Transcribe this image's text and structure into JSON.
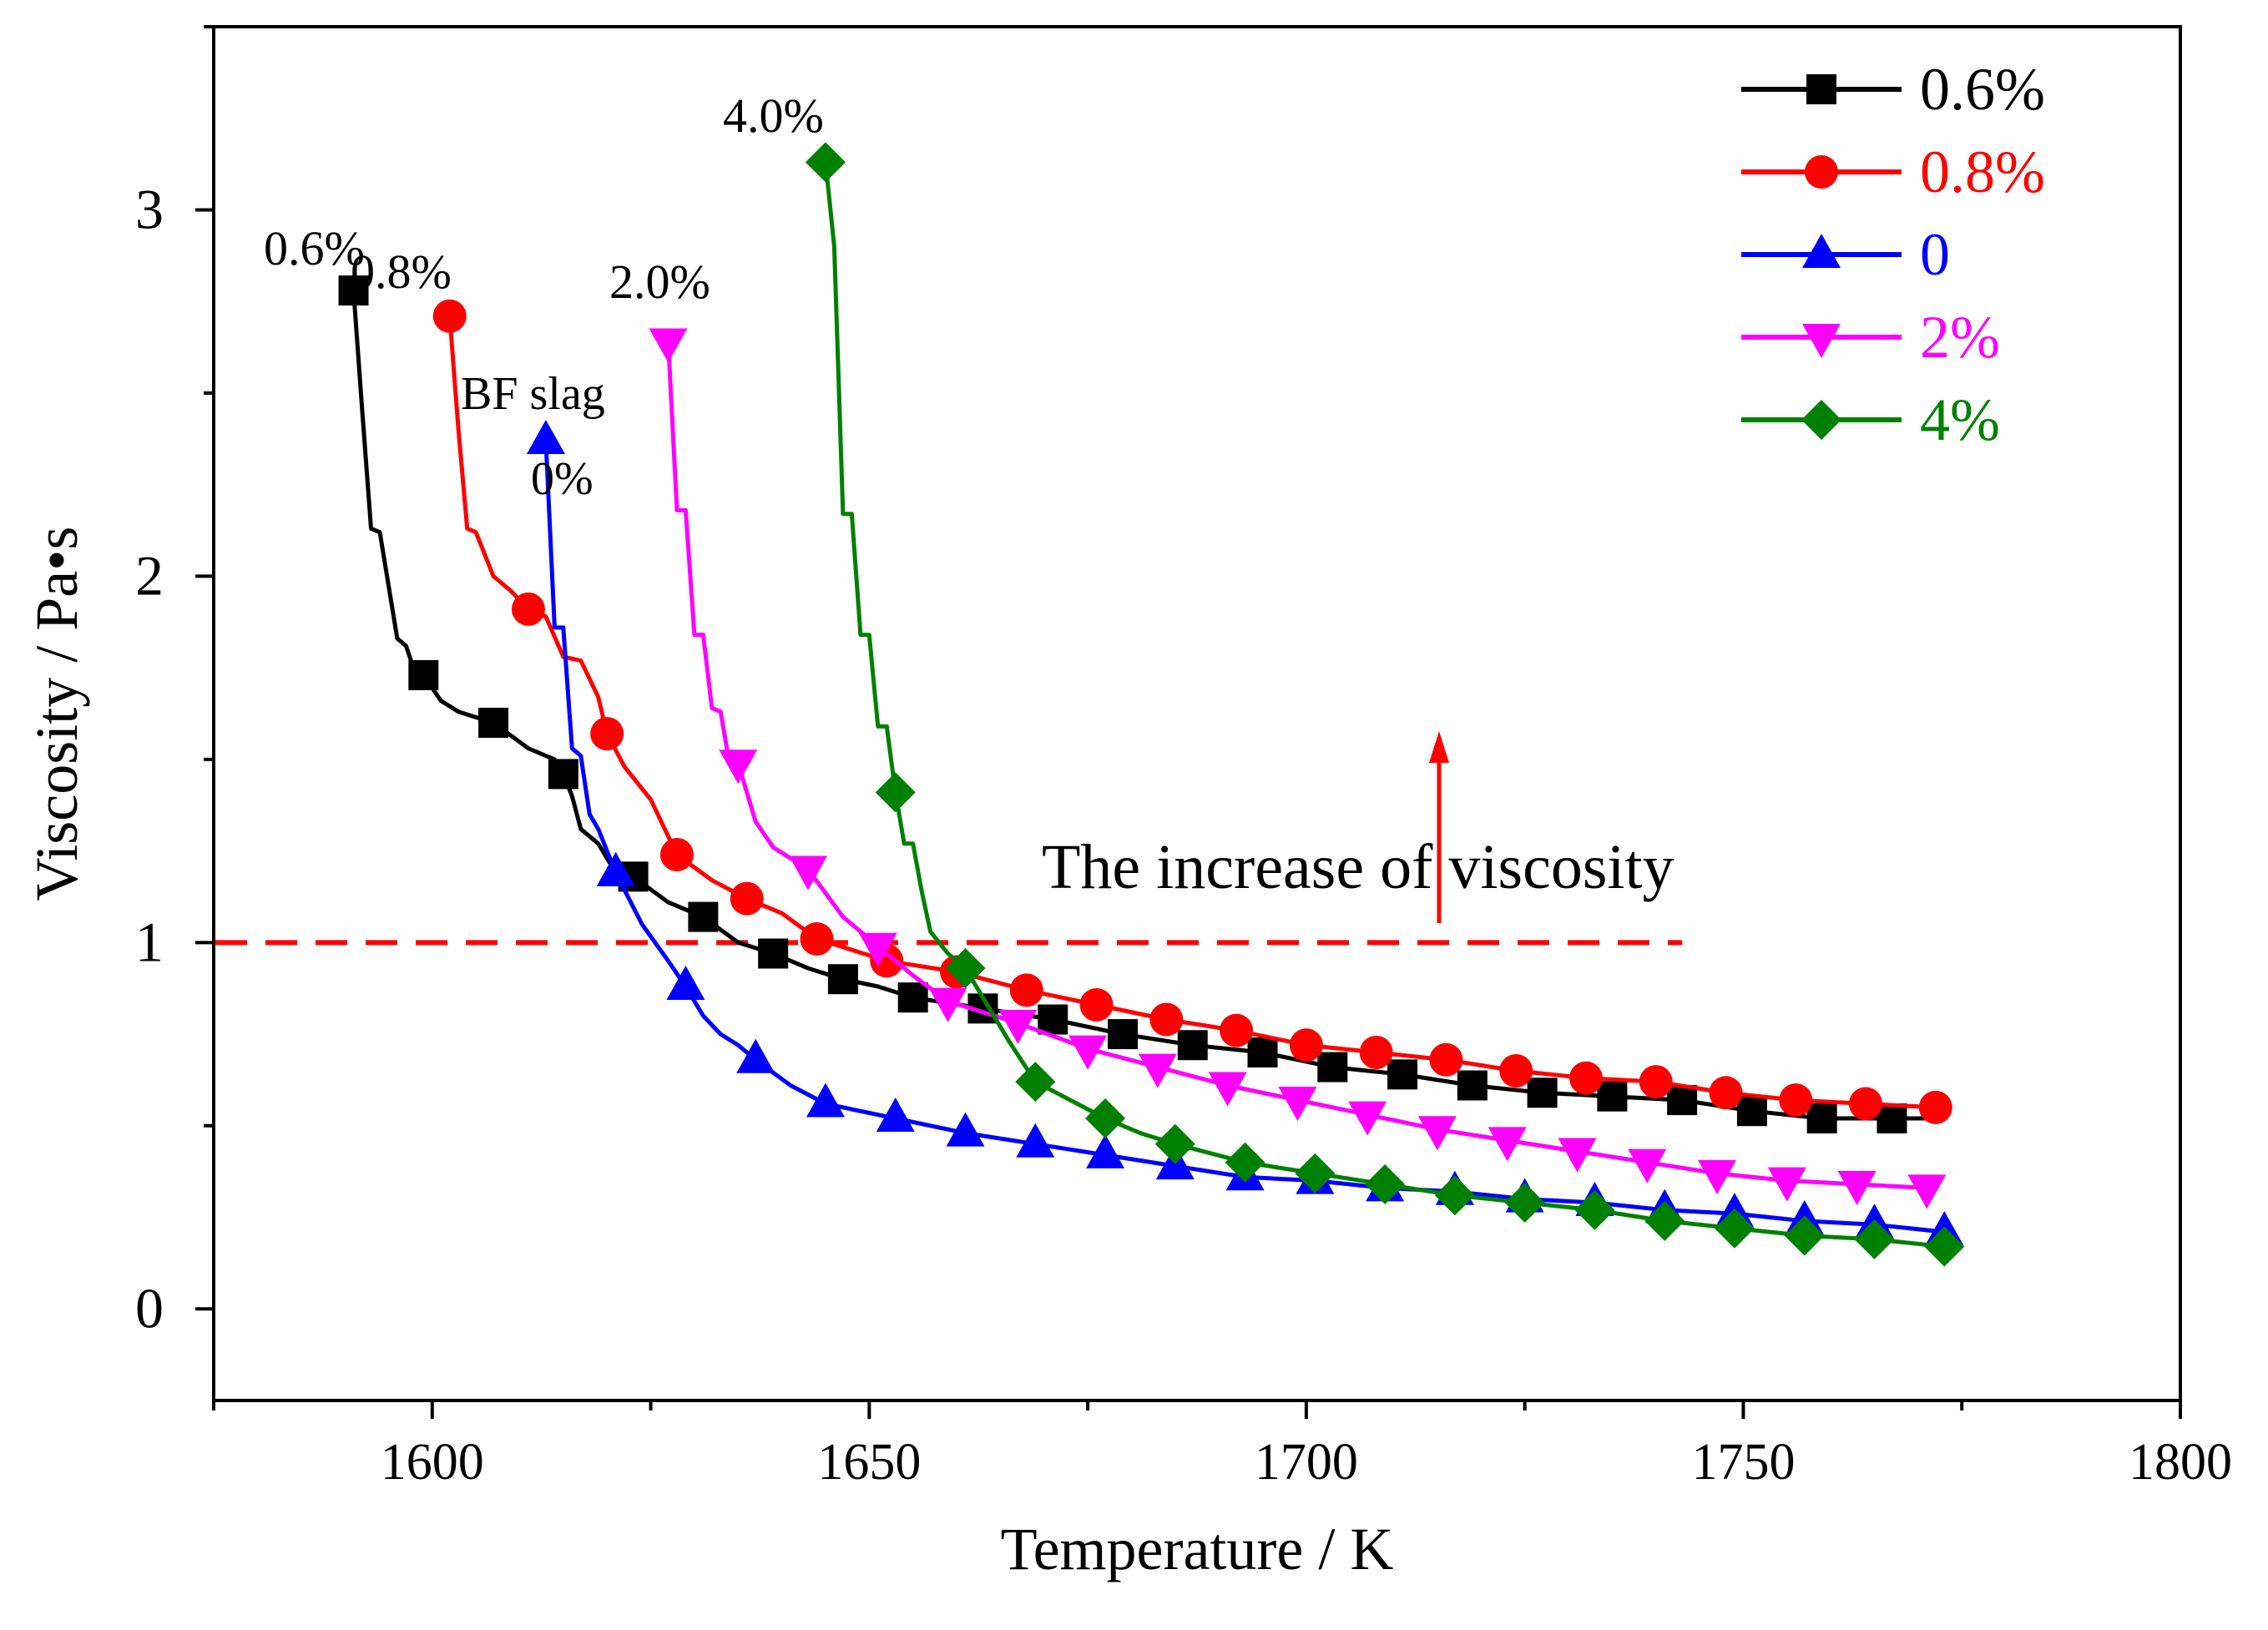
{
  "chart_data": {
    "type": "line",
    "title": "",
    "xlabel": "Temperature / K",
    "ylabel": "Viscosity / Pa•s",
    "xlim": [
      1575,
      1800
    ],
    "ylim": [
      -0.25,
      3.5
    ],
    "x_ticks": [
      1600,
      1650,
      1700,
      1750,
      1800
    ],
    "x_tick_labels": [
      "1600",
      "1650",
      "1700",
      "1750",
      "1800"
    ],
    "y_ticks": [
      0,
      1,
      2,
      3
    ],
    "y_tick_labels": [
      "0",
      "1",
      "2",
      "3"
    ],
    "grid": false,
    "legend_position": "top-right",
    "series": [
      {
        "name": "0.6%",
        "color": "#000000",
        "marker": "square",
        "x": [
          1591,
          1599,
          1607,
          1615,
          1623,
          1631,
          1639,
          1647,
          1655,
          1663,
          1671,
          1679,
          1687,
          1695,
          1703,
          1711,
          1719,
          1727,
          1735,
          1743,
          1751,
          1759,
          1767
        ],
        "values": [
          2.78,
          1.73,
          1.6,
          1.46,
          1.18,
          1.07,
          0.97,
          0.9,
          0.85,
          0.82,
          0.79,
          0.75,
          0.72,
          0.7,
          0.66,
          0.64,
          0.61,
          0.59,
          0.58,
          0.57,
          0.54,
          0.52,
          0.52
        ],
        "line_x": [
          1591,
          1592,
          1593,
          1594,
          1596,
          1597,
          1598,
          1599,
          1601,
          1603,
          1607,
          1611,
          1614,
          1615,
          1616,
          1617,
          1619,
          1621,
          1623,
          1627,
          1631,
          1635,
          1639,
          1643,
          1647,
          1651,
          1655,
          1663,
          1671,
          1679,
          1687,
          1695,
          1703,
          1711,
          1719,
          1727,
          1735,
          1743,
          1751,
          1759,
          1767,
          1773
        ],
        "line_y": [
          2.78,
          2.45,
          2.13,
          2.12,
          1.83,
          1.81,
          1.74,
          1.73,
          1.66,
          1.63,
          1.6,
          1.53,
          1.5,
          1.46,
          1.4,
          1.31,
          1.27,
          1.19,
          1.18,
          1.11,
          1.07,
          1.0,
          0.97,
          0.93,
          0.9,
          0.88,
          0.85,
          0.82,
          0.79,
          0.75,
          0.72,
          0.7,
          0.66,
          0.64,
          0.61,
          0.59,
          0.58,
          0.57,
          0.54,
          0.52,
          0.52,
          0.52
        ]
      },
      {
        "name": "0.8%",
        "color": "#ff0000",
        "marker": "circle",
        "x": [
          1602,
          1611,
          1620,
          1628,
          1636,
          1644,
          1652,
          1660,
          1668,
          1676,
          1684,
          1692,
          1700,
          1708,
          1716,
          1724,
          1732,
          1740,
          1748,
          1756,
          1764,
          1772
        ],
        "values": [
          2.71,
          1.91,
          1.57,
          1.24,
          1.12,
          1.01,
          0.95,
          0.92,
          0.87,
          0.83,
          0.79,
          0.76,
          0.72,
          0.7,
          0.68,
          0.65,
          0.63,
          0.62,
          0.59,
          0.57,
          0.56,
          0.55
        ],
        "line_x": [
          1602,
          1603,
          1604,
          1605,
          1607,
          1609,
          1611,
          1613,
          1615,
          1617,
          1619,
          1620,
          1622,
          1625,
          1628,
          1632,
          1636,
          1640,
          1644,
          1648,
          1652,
          1660,
          1668,
          1676,
          1684,
          1692,
          1700,
          1708,
          1716,
          1724,
          1732,
          1740,
          1748,
          1756,
          1764,
          1772
        ],
        "line_y": [
          2.71,
          2.4,
          2.13,
          2.12,
          2.0,
          1.96,
          1.91,
          1.89,
          1.78,
          1.77,
          1.67,
          1.57,
          1.48,
          1.39,
          1.24,
          1.17,
          1.12,
          1.08,
          1.01,
          0.98,
          0.95,
          0.92,
          0.87,
          0.83,
          0.79,
          0.76,
          0.72,
          0.7,
          0.68,
          0.65,
          0.63,
          0.62,
          0.59,
          0.57,
          0.56,
          0.55
        ]
      },
      {
        "name": "0",
        "color": "#0000ff",
        "marker": "triangle-up",
        "x": [
          1613,
          1621,
          1629,
          1637,
          1645,
          1653,
          1661,
          1669,
          1677,
          1685,
          1693,
          1701,
          1709,
          1717,
          1725,
          1733,
          1741,
          1749,
          1757,
          1765,
          1773
        ],
        "values": [
          2.37,
          1.19,
          0.88,
          0.68,
          0.56,
          0.52,
          0.48,
          0.45,
          0.42,
          0.39,
          0.36,
          0.35,
          0.33,
          0.32,
          0.3,
          0.29,
          0.27,
          0.26,
          0.24,
          0.23,
          0.21
        ],
        "line_x": [
          1613,
          1614,
          1615,
          1616,
          1617,
          1618,
          1619,
          1621,
          1624,
          1627,
          1629,
          1631,
          1633,
          1635,
          1637,
          1641,
          1645,
          1653,
          1661,
          1669,
          1677,
          1685,
          1693,
          1701,
          1709,
          1717,
          1725,
          1733,
          1741,
          1749,
          1757,
          1765,
          1773
        ],
        "line_y": [
          2.37,
          1.86,
          1.86,
          1.53,
          1.51,
          1.35,
          1.31,
          1.19,
          1.05,
          0.95,
          0.88,
          0.8,
          0.75,
          0.72,
          0.68,
          0.61,
          0.56,
          0.52,
          0.48,
          0.45,
          0.42,
          0.39,
          0.36,
          0.35,
          0.33,
          0.32,
          0.3,
          0.29,
          0.27,
          0.26,
          0.24,
          0.23,
          0.21
        ]
      },
      {
        "name": "2%",
        "color": "#ff00ff",
        "marker": "triangle-down",
        "x": [
          1627,
          1635,
          1643,
          1651,
          1659,
          1667,
          1675,
          1683,
          1691,
          1699,
          1707,
          1715,
          1723,
          1731,
          1739,
          1747,
          1755,
          1763,
          1771
        ],
        "values": [
          2.64,
          1.49,
          1.2,
          0.99,
          0.84,
          0.78,
          0.71,
          0.66,
          0.61,
          0.57,
          0.53,
          0.49,
          0.46,
          0.43,
          0.4,
          0.37,
          0.35,
          0.34,
          0.33
        ],
        "line_x": [
          1627,
          1628,
          1629,
          1630,
          1631,
          1632,
          1633,
          1634,
          1635,
          1637,
          1639,
          1643,
          1647,
          1651,
          1655,
          1659,
          1667,
          1675,
          1683,
          1691,
          1699,
          1707,
          1715,
          1723,
          1731,
          1739,
          1747,
          1755,
          1763,
          1771
        ],
        "line_y": [
          2.64,
          2.18,
          2.18,
          1.84,
          1.84,
          1.64,
          1.63,
          1.49,
          1.49,
          1.33,
          1.26,
          1.2,
          1.07,
          0.99,
          0.91,
          0.84,
          0.78,
          0.71,
          0.66,
          0.61,
          0.57,
          0.53,
          0.49,
          0.46,
          0.43,
          0.4,
          0.37,
          0.35,
          0.34,
          0.33
        ]
      },
      {
        "name": "4%",
        "color": "#008000",
        "marker": "diamond",
        "x": [
          1645,
          1653,
          1661,
          1669,
          1677,
          1685,
          1693,
          1701,
          1709,
          1717,
          1725,
          1733,
          1741,
          1749,
          1757,
          1765,
          1773
        ],
        "values": [
          3.13,
          1.41,
          0.93,
          0.62,
          0.52,
          0.45,
          0.4,
          0.37,
          0.34,
          0.31,
          0.29,
          0.27,
          0.24,
          0.22,
          0.2,
          0.19,
          0.17
        ],
        "line_x": [
          1645,
          1646,
          1647,
          1648,
          1649,
          1650,
          1651,
          1652,
          1653,
          1654,
          1655,
          1656,
          1657,
          1658,
          1659,
          1661,
          1663,
          1666,
          1669,
          1673,
          1677,
          1681,
          1685,
          1693,
          1701,
          1709,
          1717,
          1725,
          1733,
          1741,
          1749,
          1757,
          1765,
          1773
        ],
        "line_y": [
          3.13,
          2.9,
          2.17,
          2.17,
          1.84,
          1.84,
          1.59,
          1.59,
          1.41,
          1.27,
          1.27,
          1.14,
          1.03,
          1.0,
          0.97,
          0.93,
          0.85,
          0.73,
          0.62,
          0.57,
          0.52,
          0.48,
          0.45,
          0.4,
          0.37,
          0.34,
          0.31,
          0.29,
          0.27,
          0.24,
          0.22,
          0.2,
          0.19,
          0.17
        ]
      }
    ],
    "reference_line": {
      "y": 1,
      "x_range": [
        1575,
        1743
      ],
      "color": "#ff0000",
      "style": "dashed"
    },
    "annotations": [
      {
        "text": "0.6%",
        "color": "#000000"
      },
      {
        "text": "0.8%",
        "color": "#000000"
      },
      {
        "text": "BF slag",
        "color": "#000000"
      },
      {
        "text": "0%",
        "color": "#000000"
      },
      {
        "text": "2.0%",
        "color": "#000000"
      },
      {
        "text": "4.0%",
        "color": "#000000"
      },
      {
        "text": "The increase of viscosity",
        "color": "#000000"
      }
    ]
  }
}
